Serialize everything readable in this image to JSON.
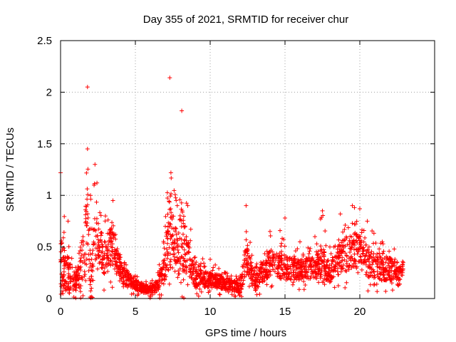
{
  "chart_data": {
    "type": "scatter",
    "title": "Day 355 of 2021, SRMTID for receiver chur",
    "xlabel": "GPS time / hours",
    "ylabel": "SRMTID / TECUs",
    "xlim": [
      0,
      25
    ],
    "ylim": [
      0,
      2.5
    ],
    "xticks": [
      0,
      5,
      10,
      15,
      20
    ],
    "xtick_labels": [
      "0",
      "5",
      "10",
      "15",
      "20"
    ],
    "yticks": [
      0,
      0.5,
      1,
      1.5,
      2,
      2.5
    ],
    "ytick_labels": [
      "0",
      "0.5",
      "1",
      "1.5",
      "2",
      "2.5"
    ],
    "grid": true,
    "marker": "+",
    "color": "#ff0000",
    "x_range_of_data": [
      0,
      22.9
    ],
    "envelope": [
      {
        "x": 0.0,
        "y": 0.3,
        "spread": 0.55,
        "peak": 1.22
      },
      {
        "x": 0.5,
        "y": 0.25,
        "spread": 0.35,
        "peak": 0.75
      },
      {
        "x": 1.0,
        "y": 0.15,
        "spread": 0.15,
        "peak": 0.3
      },
      {
        "x": 1.5,
        "y": 0.3,
        "spread": 0.4,
        "peak": 0.6
      },
      {
        "x": 1.8,
        "y": 0.8,
        "spread": 0.9,
        "peak": 2.05
      },
      {
        "x": 2.0,
        "y": 0.15,
        "spread": 0.5,
        "peak": 1.0
      },
      {
        "x": 2.3,
        "y": 0.6,
        "spread": 0.45,
        "peak": 1.3
      },
      {
        "x": 3.0,
        "y": 0.4,
        "spread": 0.35,
        "peak": 0.8
      },
      {
        "x": 3.5,
        "y": 0.55,
        "spread": 0.45,
        "peak": 0.95
      },
      {
        "x": 4.0,
        "y": 0.25,
        "spread": 0.2,
        "peak": 0.4
      },
      {
        "x": 5.0,
        "y": 0.13,
        "spread": 0.1,
        "peak": 0.22
      },
      {
        "x": 6.0,
        "y": 0.08,
        "spread": 0.08,
        "peak": 0.15
      },
      {
        "x": 6.5,
        "y": 0.12,
        "spread": 0.12,
        "peak": 0.25
      },
      {
        "x": 7.0,
        "y": 0.35,
        "spread": 0.4,
        "peak": 0.7
      },
      {
        "x": 7.3,
        "y": 0.7,
        "spread": 0.8,
        "peak": 2.14
      },
      {
        "x": 7.8,
        "y": 0.4,
        "spread": 0.45,
        "peak": 0.9
      },
      {
        "x": 8.1,
        "y": 0.6,
        "spread": 0.7,
        "peak": 1.82
      },
      {
        "x": 8.5,
        "y": 0.4,
        "spread": 0.35,
        "peak": 0.9
      },
      {
        "x": 9.0,
        "y": 0.2,
        "spread": 0.18,
        "peak": 0.4
      },
      {
        "x": 10.0,
        "y": 0.18,
        "spread": 0.15,
        "peak": 0.38
      },
      {
        "x": 11.0,
        "y": 0.15,
        "spread": 0.12,
        "peak": 0.25
      },
      {
        "x": 12.0,
        "y": 0.1,
        "spread": 0.1,
        "peak": 0.22
      },
      {
        "x": 12.4,
        "y": 0.4,
        "spread": 0.35,
        "peak": 0.9
      },
      {
        "x": 13.0,
        "y": 0.15,
        "spread": 0.15,
        "peak": 0.3
      },
      {
        "x": 14.0,
        "y": 0.35,
        "spread": 0.25,
        "peak": 0.65
      },
      {
        "x": 15.0,
        "y": 0.3,
        "spread": 0.25,
        "peak": 0.78
      },
      {
        "x": 16.0,
        "y": 0.28,
        "spread": 0.2,
        "peak": 0.55
      },
      {
        "x": 17.0,
        "y": 0.3,
        "spread": 0.22,
        "peak": 0.6
      },
      {
        "x": 17.5,
        "y": 0.35,
        "spread": 0.3,
        "peak": 0.85
      },
      {
        "x": 18.0,
        "y": 0.25,
        "spread": 0.2,
        "peak": 0.5
      },
      {
        "x": 18.7,
        "y": 0.4,
        "spread": 0.3,
        "peak": 0.82
      },
      {
        "x": 19.5,
        "y": 0.45,
        "spread": 0.35,
        "peak": 0.9
      },
      {
        "x": 20.0,
        "y": 0.48,
        "spread": 0.3,
        "peak": 0.87
      },
      {
        "x": 20.5,
        "y": 0.35,
        "spread": 0.3,
        "peak": 0.75
      },
      {
        "x": 21.5,
        "y": 0.3,
        "spread": 0.25,
        "peak": 0.55
      },
      {
        "x": 22.3,
        "y": 0.28,
        "spread": 0.2,
        "peak": 0.48
      },
      {
        "x": 22.9,
        "y": 0.25,
        "spread": 0.15,
        "peak": 0.35
      }
    ]
  }
}
